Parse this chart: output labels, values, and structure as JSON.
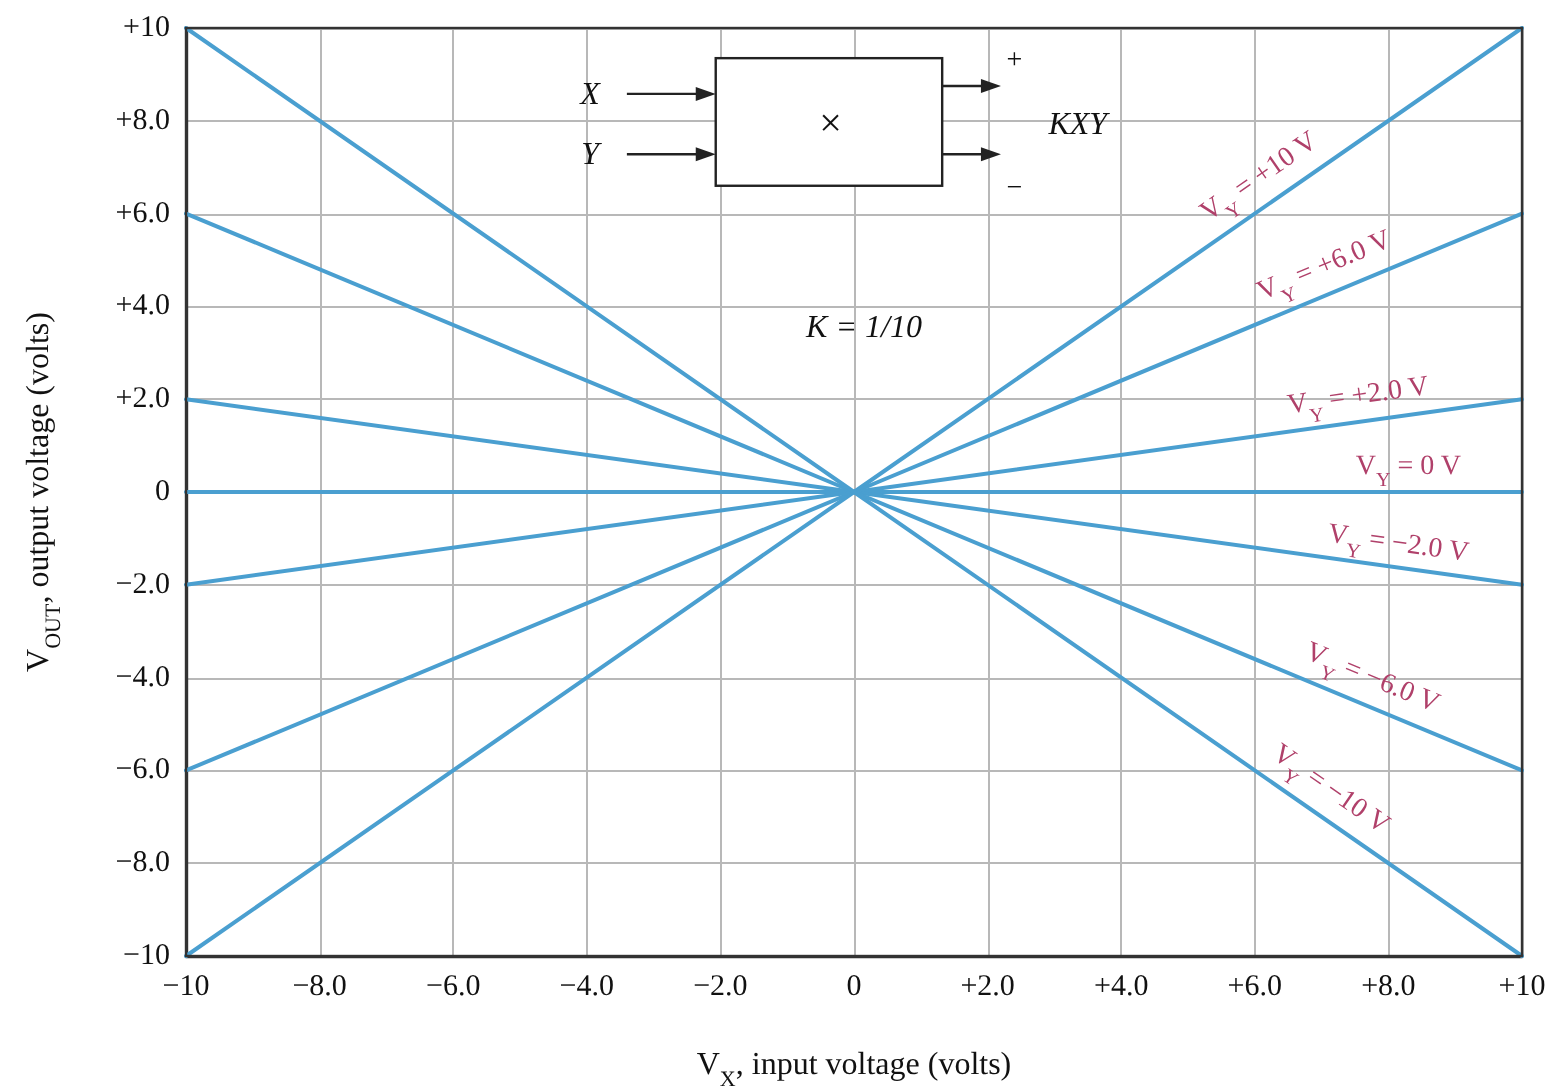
{
  "chart_data": {
    "type": "line",
    "xlabel": "V$_{X}$, input voltage (volts)",
    "ylabel": "V$_{OUT}$, output voltage (volts)",
    "x": [
      -10,
      0,
      10
    ],
    "series": [
      {
        "name": "V$_{Y}$ = +10 V",
        "color": "#4a9fd0",
        "values": [
          -10,
          0,
          10
        ]
      },
      {
        "name": "V$_{Y}$ = +6.0 V",
        "color": "#4a9fd0",
        "values": [
          -6,
          0,
          6
        ]
      },
      {
        "name": "V$_{Y}$ = +2.0 V",
        "color": "#4a9fd0",
        "values": [
          -2,
          0,
          2
        ]
      },
      {
        "name": "V$_{Y}$ = 0 V",
        "color": "#4a9fd0",
        "values": [
          0,
          0,
          0
        ]
      },
      {
        "name": "V$_{Y}$ = −2.0 V",
        "color": "#4a9fd0",
        "values": [
          2,
          0,
          -2
        ]
      },
      {
        "name": "V$_{Y}$ = −6.0 V",
        "color": "#4a9fd0",
        "values": [
          6,
          0,
          -6
        ]
      },
      {
        "name": "V$_{Y}$ = −10 V",
        "color": "#4a9fd0",
        "values": [
          10,
          0,
          -10
        ]
      }
    ],
    "annotations": [
      "X",
      "Y",
      "×",
      "KXY",
      "+",
      "−",
      "K = 1/10"
    ],
    "xlim": [
      -10,
      10
    ],
    "ylim": [
      -10,
      10
    ],
    "xticks": [
      {
        "value": -10,
        "label": "−10"
      },
      {
        "value": -8,
        "label": "−8.0"
      },
      {
        "value": -6,
        "label": "−6.0"
      },
      {
        "value": -4,
        "label": "−4.0"
      },
      {
        "value": -2,
        "label": "−2.0"
      },
      0,
      {
        "value": 2,
        "label": "+2.0"
      },
      {
        "value": 4,
        "label": "+4.0"
      },
      {
        "value": 6,
        "label": "+6.0"
      },
      {
        "value": 8,
        "label": "+8.0"
      },
      {
        "value": 10,
        "label": "+10"
      }
    ],
    "yticks": [
      {
        "value": -10,
        "label": "−10"
      },
      {
        "value": -8,
        "label": "−8.0"
      },
      {
        "value": -6,
        "label": "−6.0"
      },
      {
        "value": -4,
        "label": "−4.0"
      },
      {
        "value": -2,
        "label": "−2.0"
      },
      0,
      {
        "value": 2,
        "label": "+2.0"
      },
      {
        "value": 4,
        "label": "+4.0"
      },
      {
        "value": 6,
        "label": "+6.0"
      },
      {
        "value": 8,
        "label": "+8.0"
      },
      {
        "value": 10,
        "label": "+10"
      }
    ],
    "grid": true,
    "marker": "none",
    "line_style": "solid"
  }
}
